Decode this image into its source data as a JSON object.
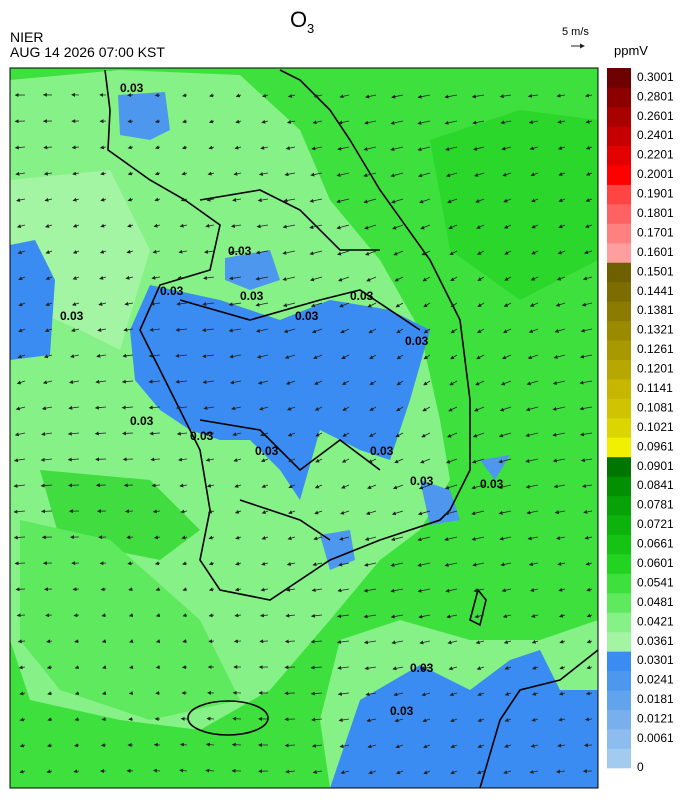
{
  "header": {
    "title": "O",
    "title_sub": "3",
    "agency": "NIER",
    "datetime": "AUG 14 2026 07:00 KST",
    "wind_scale": "5 m/s"
  },
  "contour_labels": [
    "0.03",
    "0.03",
    "0.03",
    "0.03",
    "0.03",
    "0.03",
    "0.03",
    "0.03",
    "0.03",
    "0.03",
    "0.03",
    "0.03",
    "0.03",
    "0.03",
    "0.03",
    "0.03"
  ],
  "colorbar": {
    "unit": "ppmV",
    "levels": [
      0,
      0.0061,
      0.0121,
      0.0181,
      0.0241,
      0.0301,
      0.0361,
      0.0421,
      0.0481,
      0.0541,
      0.0601,
      0.0661,
      0.0721,
      0.0781,
      0.0841,
      0.0901,
      0.0961,
      0.1021,
      0.1081,
      0.1141,
      0.1201,
      0.1261,
      0.1321,
      0.1381,
      0.1441,
      0.1501,
      0.1601,
      0.1701,
      0.1801,
      0.1901,
      0.2001,
      0.2201,
      0.2401,
      0.2601,
      0.2801,
      0.3001
    ],
    "colors": [
      "#a3cbef",
      "#8dbdee",
      "#78b0ee",
      "#62a3ee",
      "#4d97ef",
      "#3a8cf2",
      "#a3f5a3",
      "#86f186",
      "#5fe95f",
      "#3ee03e",
      "#22d322",
      "#14c314",
      "#0cb30c",
      "#07a207",
      "#028f02",
      "#007500",
      "#f0f000",
      "#dcd500",
      "#d0c400",
      "#c6b600",
      "#b7a700",
      "#a89900",
      "#9a8a00",
      "#8b7c00",
      "#7d6d00",
      "#6e5f00",
      "#ff9e9e",
      "#ff8080",
      "#ff6262",
      "#ff4444",
      "#ff0000",
      "#e30000",
      "#c60000",
      "#a90000",
      "#8c0000",
      "#6d0000"
    ]
  }
}
